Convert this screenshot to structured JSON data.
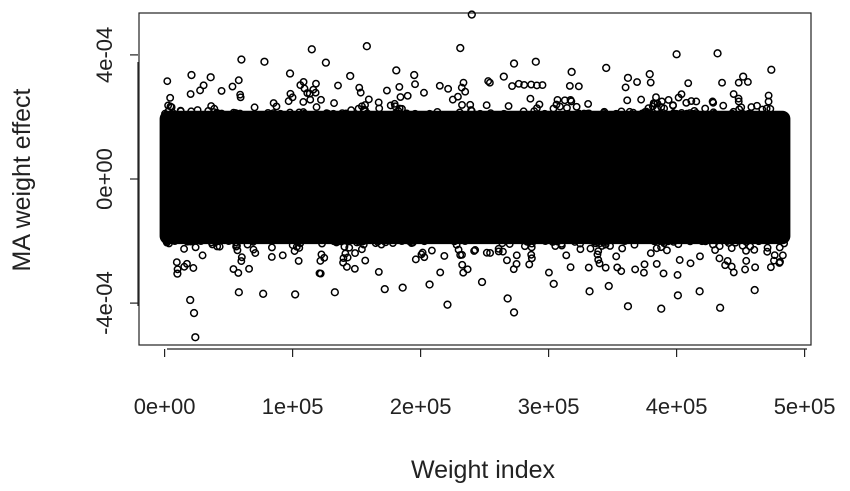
{
  "chart_data": {
    "type": "scatter",
    "title": "",
    "xlabel": "Weight index",
    "ylabel": "MA weight effect",
    "xlim": [
      -20000,
      505000
    ],
    "ylim": [
      -0.000535,
      0.000535
    ],
    "x_ticks": [
      0,
      100000,
      200000,
      300000,
      400000,
      500000
    ],
    "x_tick_labels": [
      "0e+00",
      "1e+05",
      "2e+05",
      "3e+05",
      "4e+05",
      "5e+05"
    ],
    "y_ticks": [
      -0.0004,
      0,
      0.0004
    ],
    "y_tick_labels": [
      "-4e-04",
      "0e+00",
      "4e-04"
    ],
    "x_range_of_points": [
      0,
      485000
    ],
    "dense_band": {
      "ymin": -0.00021,
      "ymax": 0.00022
    },
    "marker": "open-circle",
    "color": "#000000",
    "grid": false,
    "outlier_points": [
      {
        "x": 240000,
        "y": 0.00053
      },
      {
        "x": 158000,
        "y": 0.000428
      },
      {
        "x": 231000,
        "y": 0.000422
      },
      {
        "x": 115000,
        "y": 0.000418
      },
      {
        "x": 432000,
        "y": 0.000405
      },
      {
        "x": 400000,
        "y": 0.000402
      },
      {
        "x": 60000,
        "y": 0.000385
      },
      {
        "x": 126000,
        "y": 0.000375
      },
      {
        "x": 78000,
        "y": 0.000378
      },
      {
        "x": 290000,
        "y": 0.000378
      },
      {
        "x": 273000,
        "y": 0.000372
      },
      {
        "x": 345000,
        "y": 0.000358
      },
      {
        "x": 181000,
        "y": 0.00035
      },
      {
        "x": 474000,
        "y": 0.000352
      },
      {
        "x": 21000,
        "y": 0.000335
      },
      {
        "x": 195000,
        "y": 0.000335
      },
      {
        "x": 318000,
        "y": 0.000345
      },
      {
        "x": 379000,
        "y": 0.000338
      },
      {
        "x": 98000,
        "y": 0.00034
      },
      {
        "x": 145000,
        "y": 0.000332
      },
      {
        "x": 452000,
        "y": 0.00033
      },
      {
        "x": 36000,
        "y": 0.000328
      },
      {
        "x": 265000,
        "y": 0.00033
      },
      {
        "x": 362000,
        "y": 0.000326
      },
      {
        "x": 24000,
        "y": -0.00051
      },
      {
        "x": 23000,
        "y": -0.000432
      },
      {
        "x": 273000,
        "y": -0.00043
      },
      {
        "x": 388000,
        "y": -0.000418
      },
      {
        "x": 362000,
        "y": -0.00041
      },
      {
        "x": 434000,
        "y": -0.000415
      },
      {
        "x": 221000,
        "y": -0.000405
      },
      {
        "x": 268000,
        "y": -0.000385
      },
      {
        "x": 20000,
        "y": -0.00039
      },
      {
        "x": 401000,
        "y": -0.000375
      },
      {
        "x": 58000,
        "y": -0.000365
      },
      {
        "x": 77000,
        "y": -0.00037
      },
      {
        "x": 102000,
        "y": -0.000372
      },
      {
        "x": 133000,
        "y": -0.000365
      },
      {
        "x": 332000,
        "y": -0.000362
      },
      {
        "x": 172000,
        "y": -0.000355
      },
      {
        "x": 418000,
        "y": -0.000362
      },
      {
        "x": 461000,
        "y": -0.000358
      },
      {
        "x": 10000,
        "y": -0.000305
      },
      {
        "x": 186000,
        "y": -0.00035
      },
      {
        "x": 207000,
        "y": -0.00034
      },
      {
        "x": 347000,
        "y": -0.000345
      },
      {
        "x": 304000,
        "y": -0.000338
      },
      {
        "x": 248000,
        "y": -0.000332
      }
    ]
  }
}
